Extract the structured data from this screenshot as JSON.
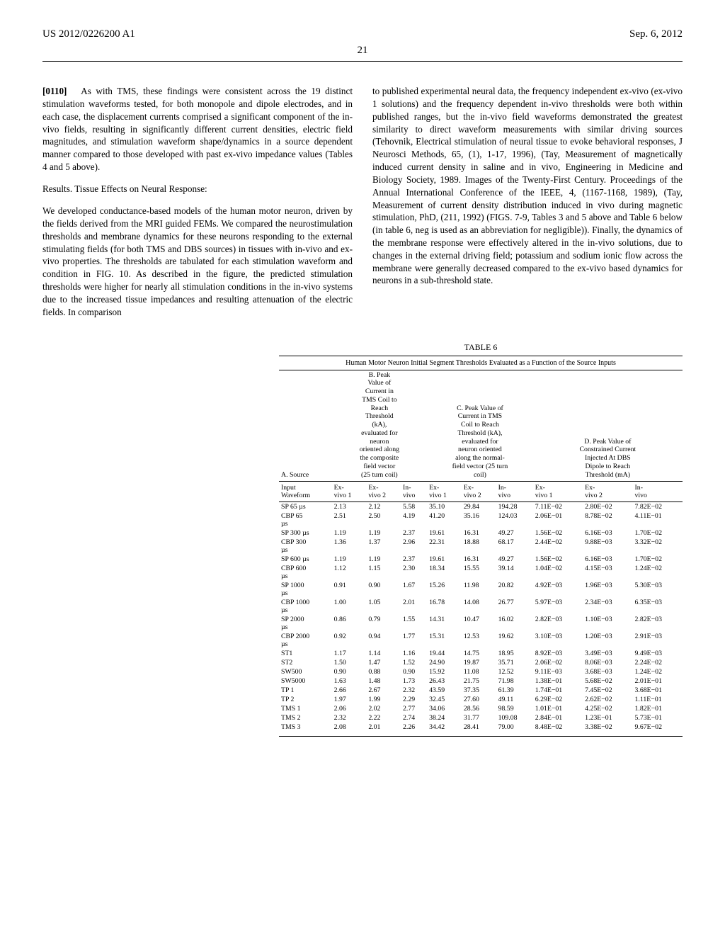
{
  "header": {
    "left": "US 2012/0226200 A1",
    "right": "Sep. 6, 2012",
    "page_number": "21"
  },
  "left_column": {
    "para_num": "[0110]",
    "para1": "As with TMS, these findings were consistent across the 19 distinct stimulation waveforms tested, for both monopole and dipole electrodes, and in each case, the displacement currents comprised a significant component of the in-vivo fields, resulting in significantly different current densities, electric field magnitudes, and stimulation waveform shape/dynamics in a source dependent manner compared to those developed with past ex-vivo impedance values (Tables 4 and 5 above).",
    "section": "Results. Tissue Effects on Neural Response:",
    "para2": "We developed conductance-based models of the human motor neuron, driven by the fields derived from the MRI guided FEMs. We compared the neurostimulation thresholds and membrane dynamics for these neurons responding to the external stimulating fields (for both TMS and DBS sources) in tissues with in-vivo and ex-vivo properties. The thresholds are tabulated for each stimulation waveform and condition in FIG. 10. As described in the figure, the predicted stimulation thresholds were higher for nearly all stimulation conditions in the in-vivo systems due to the increased tissue impedances and resulting attenuation of the electric fields. In comparison"
  },
  "right_column": {
    "para1": "to published experimental neural data, the frequency independent ex-vivo (ex-vivo 1 solutions) and the frequency dependent in-vivo thresholds were both within published ranges, but the in-vivo field waveforms demonstrated the greatest similarity to direct waveform measurements with similar driving sources (Tehovnik, Electrical stimulation of neural tissue to evoke behavioral responses, J Neurosci Methods, 65, (1), 1-17, 1996), (Tay, Measurement of magnetically induced current density in saline and in vivo, Engineering in Medicine and Biology Society, 1989. Images of the Twenty-First Century. Proceedings of the Annual International Conference of the IEEE, 4, (1167-1168, 1989), (Tay, Measurement of current density distribution induced in vivo during magnetic stimulation, PhD, (211, 1992) (FIGS. 7-9, Tables 3 and 5 above and Table 6 below (in table 6, neg is used as an abbreviation for negligible)). Finally, the dynamics of the membrane response were effectively altered in the in-vivo solutions, due to changes in the external driving field; potassium and sodium ionic flow across the membrane were generally decreased compared to the ex-vivo based dynamics for neurons in a sub-threshold state."
  },
  "table": {
    "label": "TABLE 6",
    "caption": "Human Motor Neuron Initial Segment Thresholds Evaluated as a Function of the Source Inputs",
    "group_headers": {
      "a": "A. Source",
      "b": "B. Peak\nValue of\nCurrent in\nTMS Coil to\nReach\nThreshold\n(kA),\nevaluated for\nneuron\noriented along\nthe composite\nfield vector\n(25 turn coil)",
      "c": "C. Peak Value of\nCurrent in TMS\nCoil to Reach\nThreshold (kA),\nevaluated for\nneuron oriented\nalong the normal-\nfield vector (25 turn\ncoil)",
      "d": "D. Peak Value of\nConstrained Current\nInjected At DBS\nDipole to Reach\nThreshold (mA)"
    },
    "sub_headers": {
      "input": "Input\nWaveform",
      "cols": [
        "Ex-\nvivo 1",
        "Ex-\nvivo 2",
        "In-\nvivo",
        "Ex-\nvivo 1",
        "Ex-\nvivo 2",
        "In-\nvivo",
        "Ex-\nvivo 1",
        "Ex-\nvivo 2",
        "In-\nvivo"
      ]
    },
    "rows": [
      {
        "label": "SP 65 µs",
        "v": [
          "2.13",
          "2.12",
          "5.58",
          "35.10",
          "29.84",
          "194.28",
          "7.11E−02",
          "2.80E−02",
          "7.82E−02"
        ]
      },
      {
        "label": "CBP 65\nµs",
        "v": [
          "2.51",
          "2.50",
          "4.19",
          "41.20",
          "35.16",
          "124.03",
          "2.06E−01",
          "8.78E−02",
          "4.11E−01"
        ]
      },
      {
        "label": "SP 300 µs",
        "v": [
          "1.19",
          "1.19",
          "2.37",
          "19.61",
          "16.31",
          "49.27",
          "1.56E−02",
          "6.16E−03",
          "1.70E−02"
        ]
      },
      {
        "label": "CBP 300\nµs",
        "v": [
          "1.36",
          "1.37",
          "2.96",
          "22.31",
          "18.88",
          "68.17",
          "2.44E−02",
          "9.88E−03",
          "3.32E−02"
        ]
      },
      {
        "label": "SP 600 µs",
        "v": [
          "1.19",
          "1.19",
          "2.37",
          "19.61",
          "16.31",
          "49.27",
          "1.56E−02",
          "6.16E−03",
          "1.70E−02"
        ]
      },
      {
        "label": "CBP 600\nµs",
        "v": [
          "1.12",
          "1.15",
          "2.30",
          "18.34",
          "15.55",
          "39.14",
          "1.04E−02",
          "4.15E−03",
          "1.24E−02"
        ]
      },
      {
        "label": "SP 1000\nµs",
        "v": [
          "0.91",
          "0.90",
          "1.67",
          "15.26",
          "11.98",
          "20.82",
          "4.92E−03",
          "1.96E−03",
          "5.30E−03"
        ]
      },
      {
        "label": "CBP 1000\nµs",
        "v": [
          "1.00",
          "1.05",
          "2.01",
          "16.78",
          "14.08",
          "26.77",
          "5.97E−03",
          "2.34E−03",
          "6.35E−03"
        ]
      },
      {
        "label": "SP 2000\nµs",
        "v": [
          "0.86",
          "0.79",
          "1.55",
          "14.31",
          "10.47",
          "16.02",
          "2.82E−03",
          "1.10E−03",
          "2.82E−03"
        ]
      },
      {
        "label": "CBP 2000\nµs",
        "v": [
          "0.92",
          "0.94",
          "1.77",
          "15.31",
          "12.53",
          "19.62",
          "3.10E−03",
          "1.20E−03",
          "2.91E−03"
        ]
      },
      {
        "label": "ST1",
        "v": [
          "1.17",
          "1.14",
          "1.16",
          "19.44",
          "14.75",
          "18.95",
          "8.92E−03",
          "3.49E−03",
          "9.49E−03"
        ]
      },
      {
        "label": "ST2",
        "v": [
          "1.50",
          "1.47",
          "1.52",
          "24.90",
          "19.87",
          "35.71",
          "2.06E−02",
          "8.06E−03",
          "2.24E−02"
        ]
      },
      {
        "label": "SW500",
        "v": [
          "0.90",
          "0.88",
          "0.90",
          "15.92",
          "11.08",
          "12.52",
          "9.11E−03",
          "3.68E−03",
          "1.24E−02"
        ]
      },
      {
        "label": "SW5000",
        "v": [
          "1.63",
          "1.48",
          "1.73",
          "26.43",
          "21.75",
          "71.98",
          "1.38E−01",
          "5.68E−02",
          "2.01E−01"
        ]
      },
      {
        "label": "TP 1",
        "v": [
          "2.66",
          "2.67",
          "2.32",
          "43.59",
          "37.35",
          "61.39",
          "1.74E−01",
          "7.45E−02",
          "3.68E−01"
        ]
      },
      {
        "label": "TP 2",
        "v": [
          "1.97",
          "1.99",
          "2.29",
          "32.45",
          "27.60",
          "49.11",
          "6.29E−02",
          "2.62E−02",
          "1.11E−01"
        ]
      },
      {
        "label": "TMS 1",
        "v": [
          "2.06",
          "2.02",
          "2.77",
          "34.06",
          "28.56",
          "98.59",
          "1.01E−01",
          "4.25E−02",
          "1.82E−01"
        ]
      },
      {
        "label": "TMS 2",
        "v": [
          "2.32",
          "2.22",
          "2.74",
          "38.24",
          "31.77",
          "109.08",
          "2.84E−01",
          "1.23E−01",
          "5.73E−01"
        ]
      },
      {
        "label": "TMS 3",
        "v": [
          "2.08",
          "2.01",
          "2.26",
          "34.42",
          "28.41",
          "79.00",
          "8.48E−02",
          "3.38E−02",
          "9.67E−02"
        ]
      }
    ],
    "style": {
      "font_family": "Times New Roman",
      "title_fontsize": 12,
      "caption_fontsize": 10,
      "cell_fontsize": 9.8,
      "rule_color": "#000000",
      "background": "#ffffff"
    }
  }
}
